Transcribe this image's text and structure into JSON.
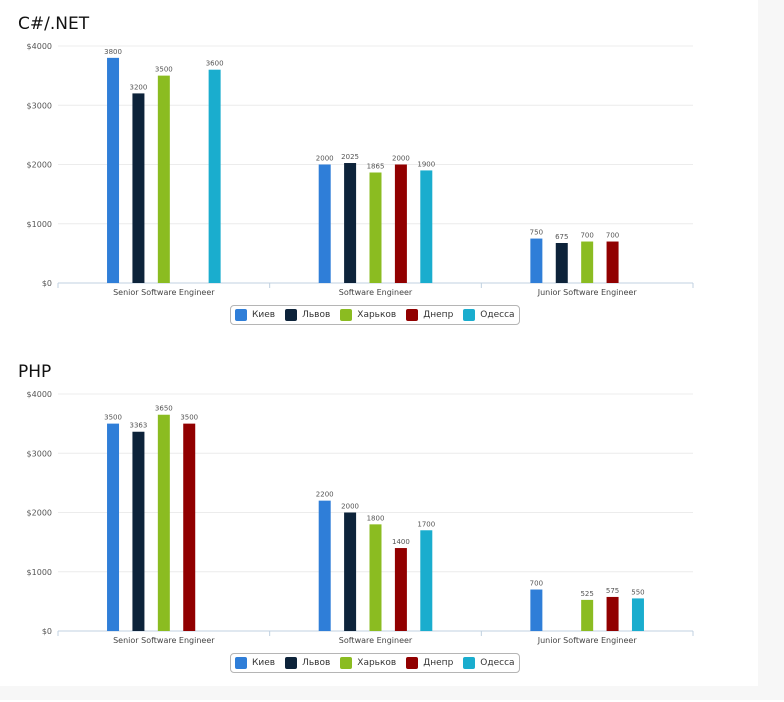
{
  "chart_data": [
    {
      "type": "bar",
      "title": "C#/.NET",
      "categories": [
        "Senior Software Engineer",
        "Software Engineer",
        "Junior Software Engineer"
      ],
      "yticks": [
        "$4000",
        "$3000",
        "$2000",
        "$1000",
        "$0"
      ],
      "ylim": [
        0,
        4000
      ],
      "grid": true,
      "legend_position": "bottom",
      "series": [
        {
          "name": "Киев",
          "color": "#2f7ed8",
          "values": [
            3800,
            2000,
            750
          ]
        },
        {
          "name": "Львов",
          "color": "#0d233a",
          "values": [
            3200,
            2025,
            675
          ]
        },
        {
          "name": "Харьков",
          "color": "#8bbc21",
          "values": [
            3500,
            1865,
            700
          ]
        },
        {
          "name": "Днепр",
          "color": "#910000",
          "values": [
            null,
            2000,
            700
          ]
        },
        {
          "name": "Одесса",
          "color": "#1aadce",
          "values": [
            3600,
            1900,
            null
          ]
        }
      ]
    },
    {
      "type": "bar",
      "title": "PHP",
      "categories": [
        "Senior Software Engineer",
        "Software Engineer",
        "Junior Software Engineer"
      ],
      "yticks": [
        "$4000",
        "$3000",
        "$2000",
        "$1000",
        "$0"
      ],
      "ylim": [
        0,
        4000
      ],
      "grid": true,
      "legend_position": "bottom",
      "series": [
        {
          "name": "Киев",
          "color": "#2f7ed8",
          "values": [
            3500,
            2200,
            700
          ]
        },
        {
          "name": "Львов",
          "color": "#0d233a",
          "values": [
            3363,
            2000,
            null
          ]
        },
        {
          "name": "Харьков",
          "color": "#8bbc21",
          "values": [
            3650,
            1800,
            525
          ]
        },
        {
          "name": "Днепр",
          "color": "#910000",
          "values": [
            3500,
            1400,
            575
          ]
        },
        {
          "name": "Одесса",
          "color": "#1aadce",
          "values": [
            null,
            1700,
            550
          ]
        }
      ]
    }
  ]
}
